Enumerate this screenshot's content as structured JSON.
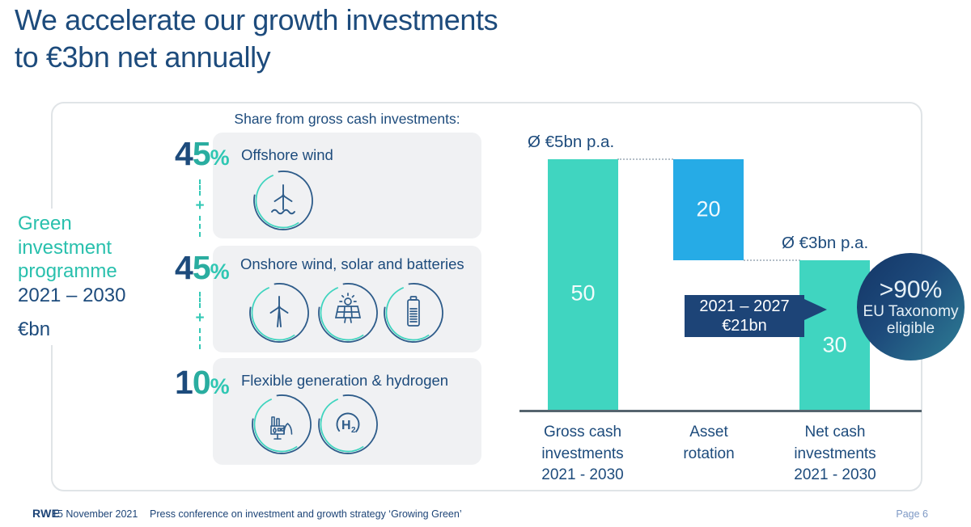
{
  "title": {
    "line1": "We accelerate our growth investments",
    "line2": "to €3bn net annually"
  },
  "programme": {
    "name_lines": [
      "Green",
      "investment",
      "programme"
    ],
    "period": "2021 – 2030",
    "unit": "€bn"
  },
  "shares": {
    "heading": "Share from gross cash investments:",
    "plus": "+",
    "items": [
      {
        "pct_lead": "4",
        "pct_tail": "5",
        "pct_sign": "%",
        "label": "Offshore wind",
        "icons": [
          "offshore-wind-turbine"
        ]
      },
      {
        "pct_lead": "4",
        "pct_tail": "5",
        "pct_sign": "%",
        "label": "Onshore wind, solar and batteries",
        "icons": [
          "wind-turbine",
          "solar-panel",
          "battery"
        ]
      },
      {
        "pct_lead": "1",
        "pct_tail": "0",
        "pct_sign": "%",
        "label": "Flexible generation & hydrogen",
        "icons": [
          "power-plant",
          "hydrogen"
        ]
      }
    ]
  },
  "chart": {
    "avg_gross": "Ø €5bn p.a.",
    "avg_net": "Ø €3bn p.a.",
    "callout": {
      "line1": "2021 – 2027",
      "line2": "€21bn"
    },
    "badge": {
      "line1": ">90%",
      "line2": "EU Taxonomy",
      "line3": "eligible"
    }
  },
  "chart_data": {
    "type": "bar",
    "subtype": "waterfall",
    "unit": "€bn",
    "ylim": [
      0,
      50
    ],
    "values": [
      50,
      20,
      30
    ],
    "value_labels": [
      "50",
      "20",
      "30"
    ],
    "categories": [
      "Gross cash investments 2021 - 2030",
      "Asset rotation",
      "Net cash investments 2021 - 2030"
    ],
    "category_lines": [
      [
        "Gross cash",
        "investments",
        "2021 - 2030"
      ],
      [
        "Asset",
        "rotation"
      ],
      [
        "Net cash",
        "investments",
        "2021 - 2030"
      ]
    ],
    "bar_colors": [
      "#40d5c0",
      "#26abe6",
      "#40d5c0"
    ],
    "annotations": [
      "Ø €5bn p.a.",
      "Ø €3bn p.a.",
      "2021 – 2027 €21bn",
      ">90% EU Taxonomy eligible"
    ],
    "grid": false,
    "legend": false
  },
  "footer": {
    "logo": "RWE",
    "date": "15 November 2021",
    "caption": "Press conference on investment and growth strategy ‘Growing Green’",
    "page": "Page 6"
  },
  "colors": {
    "navy": "#1d4b7c",
    "dark_navy": "#1d4477",
    "teal": "#40d5c0",
    "teal_text": "#2aada0",
    "blue": "#26abe6"
  }
}
